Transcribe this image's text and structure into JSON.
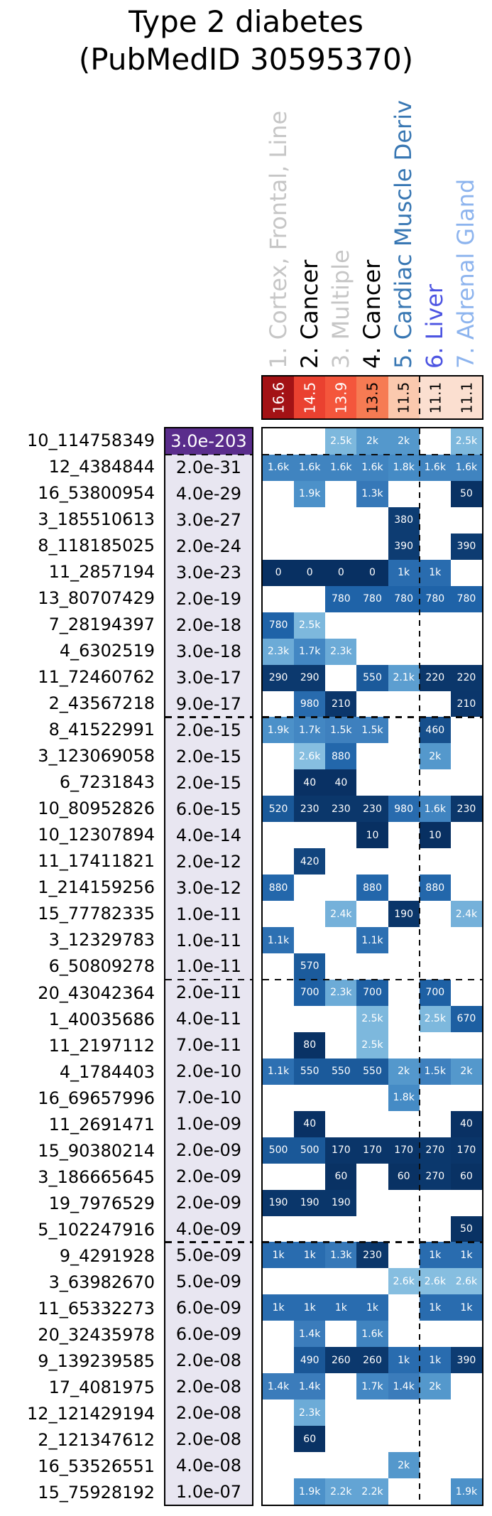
{
  "title": {
    "line1": "Type 2 diabetes",
    "line2": "(PubMedID 30595370)"
  },
  "chart_data": {
    "type": "heatmap",
    "columns": [
      {
        "label": "1. Cortex, Frontal, Line",
        "label_color": "#c6c6c6",
        "score": "16.6",
        "score_bg": "#a31215",
        "score_text": "#ffffff"
      },
      {
        "label": "2. Cancer",
        "label_color": "#000000",
        "score": "14.5",
        "score_bg": "#ea4130",
        "score_text": "#ffffff"
      },
      {
        "label": "3. Multiple",
        "label_color": "#c6c6c6",
        "score": "13.9",
        "score_bg": "#f4563c",
        "score_text": "#ffffff"
      },
      {
        "label": "4. Cancer",
        "label_color": "#000000",
        "score": "13.5",
        "score_bg": "#f67b53",
        "score_text": "#000000"
      },
      {
        "label": "5. Cardiac Muscle Deriv",
        "label_color": "#3877b3",
        "score": "11.5",
        "score_bg": "#fbc9ae",
        "score_text": "#000000"
      },
      {
        "label": "6. Liver",
        "label_color": "#4d55e2",
        "score": "11.1",
        "score_bg": "#fbdfd0",
        "score_text": "#000000"
      },
      {
        "label": "7. Adrenal Gland",
        "label_color": "#8db4ee",
        "score": "11.1",
        "score_bg": "#fbdfd0",
        "score_text": "#000000"
      }
    ],
    "rows": [
      {
        "label": "10_114758349",
        "pvalue": "3.0e-203",
        "pvalue_bg": "#5a2d8c",
        "pvalue_color": "#ffffff",
        "cells": [
          null,
          null,
          "2.5k",
          "2k",
          "2k",
          null,
          "2.5k"
        ]
      },
      {
        "label": "12_4384844",
        "pvalue": "2.0e-31",
        "cells": [
          "1.6k",
          "1.6k",
          "1.6k",
          "1.6k",
          "1.8k",
          "1.6k",
          "1.6k"
        ]
      },
      {
        "label": "16_53800954",
        "pvalue": "4.0e-29",
        "cells": [
          null,
          "1.9k",
          null,
          "1.3k",
          null,
          null,
          "50"
        ]
      },
      {
        "label": "3_185510613",
        "pvalue": "3.0e-27",
        "cells": [
          null,
          null,
          null,
          null,
          "380",
          null,
          null
        ]
      },
      {
        "label": "8_118185025",
        "pvalue": "2.0e-24",
        "cells": [
          null,
          null,
          null,
          null,
          "390",
          null,
          "390"
        ]
      },
      {
        "label": "11_2857194",
        "pvalue": "3.0e-23",
        "cells": [
          "0",
          "0",
          "0",
          "0",
          "1k",
          "1k",
          null
        ]
      },
      {
        "label": "13_80707429",
        "pvalue": "2.0e-19",
        "cells": [
          null,
          null,
          "780",
          "780",
          "780",
          "780",
          "780"
        ]
      },
      {
        "label": "7_28194397",
        "pvalue": "2.0e-18",
        "cells": [
          "780",
          "2.5k",
          null,
          null,
          null,
          null,
          null
        ]
      },
      {
        "label": "4_6302519",
        "pvalue": "3.0e-18",
        "cells": [
          "2.3k",
          "1.7k",
          "2.3k",
          null,
          null,
          null,
          null
        ]
      },
      {
        "label": "11_72460762",
        "pvalue": "3.0e-17",
        "cells": [
          "290",
          "290",
          null,
          "550",
          "2.1k",
          "220",
          "220"
        ]
      },
      {
        "label": "2_43567218",
        "pvalue": "9.0e-17",
        "cells": [
          null,
          "980",
          "210",
          null,
          null,
          null,
          "210"
        ]
      },
      {
        "label": "8_41522991",
        "pvalue": "2.0e-15",
        "cells": [
          "1.9k",
          "1.7k",
          "1.5k",
          "1.5k",
          null,
          "460",
          null
        ]
      },
      {
        "label": "3_123069058",
        "pvalue": "2.0e-15",
        "cells": [
          null,
          "2.6k",
          "880",
          null,
          null,
          "2k",
          null
        ]
      },
      {
        "label": "6_7231843",
        "pvalue": "2.0e-15",
        "cells": [
          null,
          "40",
          "40",
          null,
          null,
          null,
          null
        ]
      },
      {
        "label": "10_80952826",
        "pvalue": "6.0e-15",
        "cells": [
          "520",
          "230",
          "230",
          "230",
          "980",
          "1.6k",
          "230"
        ]
      },
      {
        "label": "10_12307894",
        "pvalue": "4.0e-14",
        "cells": [
          null,
          null,
          null,
          "10",
          null,
          "10",
          null
        ]
      },
      {
        "label": "11_17411821",
        "pvalue": "2.0e-12",
        "cells": [
          null,
          "420",
          null,
          null,
          null,
          null,
          null
        ]
      },
      {
        "label": "1_214159256",
        "pvalue": "3.0e-12",
        "cells": [
          "880",
          null,
          null,
          "880",
          null,
          "880",
          null
        ]
      },
      {
        "label": "15_77782335",
        "pvalue": "1.0e-11",
        "cells": [
          null,
          null,
          "2.4k",
          null,
          "190",
          null,
          "2.4k"
        ]
      },
      {
        "label": "3_12329783",
        "pvalue": "1.0e-11",
        "cells": [
          "1.1k",
          null,
          null,
          "1.1k",
          null,
          null,
          null
        ]
      },
      {
        "label": "6_50809278",
        "pvalue": "1.0e-11",
        "cells": [
          null,
          "570",
          null,
          null,
          null,
          null,
          null
        ]
      },
      {
        "label": "20_43042364",
        "pvalue": "2.0e-11",
        "cells": [
          null,
          "700",
          "2.3k",
          "700",
          null,
          "700",
          null
        ]
      },
      {
        "label": "1_40035686",
        "pvalue": "4.0e-11",
        "cells": [
          null,
          null,
          null,
          "2.5k",
          null,
          "2.5k",
          "670"
        ]
      },
      {
        "label": "11_2197112",
        "pvalue": "7.0e-11",
        "cells": [
          null,
          "80",
          null,
          "2.5k",
          null,
          null,
          null
        ]
      },
      {
        "label": "4_1784403",
        "pvalue": "2.0e-10",
        "cells": [
          "1.1k",
          "550",
          "550",
          "550",
          "2k",
          "1.5k",
          "2k"
        ]
      },
      {
        "label": "16_69657996",
        "pvalue": "7.0e-10",
        "cells": [
          null,
          null,
          null,
          null,
          "1.8k",
          null,
          null
        ]
      },
      {
        "label": "11_2691471",
        "pvalue": "1.0e-09",
        "cells": [
          null,
          "40",
          null,
          null,
          null,
          null,
          "40"
        ]
      },
      {
        "label": "15_90380214",
        "pvalue": "2.0e-09",
        "cells": [
          "500",
          "500",
          "170",
          "170",
          "170",
          "270",
          "170"
        ]
      },
      {
        "label": "3_186665645",
        "pvalue": "2.0e-09",
        "cells": [
          null,
          null,
          "60",
          null,
          "60",
          "270",
          "60"
        ]
      },
      {
        "label": "19_7976529",
        "pvalue": "2.0e-09",
        "cells": [
          "190",
          "190",
          "190",
          null,
          null,
          null,
          null
        ]
      },
      {
        "label": "5_102247916",
        "pvalue": "4.0e-09",
        "cells": [
          null,
          null,
          null,
          null,
          null,
          null,
          "50"
        ]
      },
      {
        "label": "9_4291928",
        "pvalue": "5.0e-09",
        "cells": [
          "1k",
          "1k",
          "1.3k",
          "230",
          null,
          "1k",
          "1k"
        ]
      },
      {
        "label": "3_63982670",
        "pvalue": "5.0e-09",
        "cells": [
          null,
          null,
          null,
          null,
          "2.6k",
          "2.6k",
          "2.6k"
        ]
      },
      {
        "label": "11_65332273",
        "pvalue": "6.0e-09",
        "cells": [
          "1k",
          "1k",
          "1k",
          "1k",
          null,
          "1k",
          "1k"
        ]
      },
      {
        "label": "20_32435978",
        "pvalue": "6.0e-09",
        "cells": [
          null,
          "1.4k",
          null,
          "1.6k",
          null,
          null,
          null
        ]
      },
      {
        "label": "9_139239585",
        "pvalue": "2.0e-08",
        "cells": [
          null,
          "490",
          "260",
          "260",
          "1k",
          "1k",
          "390"
        ]
      },
      {
        "label": "17_4081975",
        "pvalue": "2.0e-08",
        "cells": [
          "1.4k",
          "1.4k",
          null,
          "1.7k",
          "1.4k",
          "2k",
          null
        ]
      },
      {
        "label": "12_121429194",
        "pvalue": "2.0e-08",
        "cells": [
          null,
          "2.3k",
          null,
          null,
          null,
          null,
          null
        ]
      },
      {
        "label": "2_121347612",
        "pvalue": "2.0e-08",
        "cells": [
          null,
          "60",
          null,
          null,
          null,
          null,
          null
        ]
      },
      {
        "label": "16_53526551",
        "pvalue": "4.0e-08",
        "cells": [
          null,
          null,
          null,
          null,
          "2k",
          null,
          null
        ]
      },
      {
        "label": "15_75928192",
        "pvalue": "1.0e-07",
        "cells": [
          null,
          "1.9k",
          "2.2k",
          "2.2k",
          null,
          null,
          "1.9k"
        ]
      }
    ],
    "group_separators_after_rows": [
      1,
      11,
      21,
      31
    ],
    "column_separator_after_col": 5,
    "pvalue_column_bg": "#e8e6f1",
    "value_scale": {
      "min": 0,
      "max": 2600,
      "stops": [
        [
          0.0,
          [
            8,
            48,
            98
          ]
        ],
        [
          0.15,
          [
            13,
            60,
            114
          ]
        ],
        [
          0.19,
          [
            26,
            88,
            152
          ]
        ],
        [
          0.3,
          [
            31,
            99,
            168
          ]
        ],
        [
          0.55,
          [
            60,
            125,
            188
          ]
        ],
        [
          0.7,
          [
            70,
            140,
            198
          ]
        ],
        [
          0.85,
          [
            100,
            165,
            212
          ]
        ],
        [
          1.0,
          [
            134,
            190,
            224
          ]
        ]
      ],
      "cell_text_color": "#ffffff"
    }
  }
}
